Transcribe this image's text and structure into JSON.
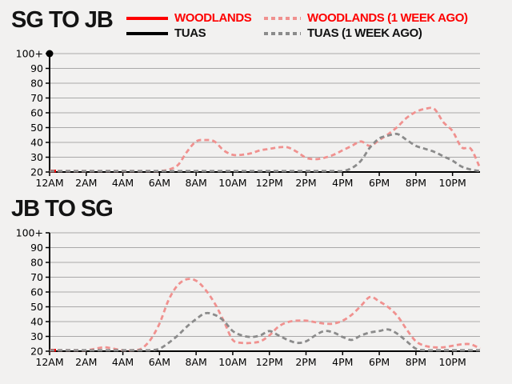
{
  "colors": {
    "background": "#f2f1f0",
    "axis": "#000000",
    "grid": "#a9a9a9",
    "woodlands": "#fe0000",
    "tuas": "#000000",
    "woodlands_week_ago": "#f0918f",
    "tuas_week_ago": "#8b8b8b"
  },
  "legend": {
    "items": [
      {
        "label": "WOODLANDS",
        "swatch_color": "#fe0000",
        "text_color": "#fe0000",
        "line_style": "solid"
      },
      {
        "label": "TUAS",
        "swatch_color": "#000000",
        "text_color": "#111111",
        "line_style": "solid"
      },
      {
        "label": "WOODLANDS (1 WEEK AGO)",
        "swatch_color": "#f0918f",
        "text_color": "#fe0000",
        "line_style": "dashed"
      },
      {
        "label": "TUAS (1 WEEK AGO)",
        "swatch_color": "#8b8b8b",
        "text_color": "#111111",
        "line_style": "dashed"
      }
    ]
  },
  "chart_data": [
    {
      "type": "line",
      "title": "SG TO JB",
      "ylim": [
        20,
        100
      ],
      "x_range_hours": [
        0,
        23.5
      ],
      "x_step_hours": 0.5,
      "grid": "horizontal",
      "y_ticks": [
        {
          "value": 100,
          "label": "100+"
        },
        {
          "value": 90,
          "label": "90"
        },
        {
          "value": 80,
          "label": "80"
        },
        {
          "value": 70,
          "label": "70"
        },
        {
          "value": 60,
          "label": "60"
        },
        {
          "value": 50,
          "label": "50"
        },
        {
          "value": 40,
          "label": "40"
        },
        {
          "value": 30,
          "label": "30"
        },
        {
          "value": 20,
          "label": "20"
        }
      ],
      "x_ticks": [
        {
          "t": 0,
          "label": "12AM"
        },
        {
          "t": 2,
          "label": "2AM"
        },
        {
          "t": 4,
          "label": "4AM"
        },
        {
          "t": 6,
          "label": "6AM"
        },
        {
          "t": 8,
          "label": "8AM"
        },
        {
          "t": 10,
          "label": "10AM"
        },
        {
          "t": 12,
          "label": "12PM"
        },
        {
          "t": 14,
          "label": "2PM"
        },
        {
          "t": 16,
          "label": "4PM"
        },
        {
          "t": 18,
          "label": "6PM"
        },
        {
          "t": 20,
          "label": "8PM"
        },
        {
          "t": 22,
          "label": "10PM"
        }
      ],
      "series": [
        {
          "name": "WOODLANDS",
          "color": "#fe0000",
          "line_style": "solid",
          "x": [
            0,
            0.35
          ],
          "values": [
            20,
            20
          ]
        },
        {
          "name": "TUAS",
          "color": "#000000",
          "line_style": "solid",
          "marker": "dot",
          "x": [
            0
          ],
          "values": [
            100
          ]
        },
        {
          "name": "WOODLANDS (1 WEEK AGO)",
          "color": "#f0918f",
          "line_style": "dashed",
          "values": [
            20,
            20,
            20,
            20,
            20,
            20,
            20,
            20,
            20,
            20,
            20,
            20,
            20,
            21,
            24,
            33,
            40,
            41,
            40,
            34,
            31,
            31,
            32,
            34,
            35,
            36,
            36,
            33,
            29,
            28,
            29,
            31,
            34,
            37,
            40,
            37,
            41,
            45,
            50,
            56,
            60,
            62,
            62,
            53,
            47,
            36,
            35,
            22
          ]
        },
        {
          "name": "TUAS (1 WEEK AGO)",
          "color": "#8b8b8b",
          "line_style": "dashed",
          "values": [
            20,
            20,
            20,
            20,
            20,
            20,
            20,
            20,
            20,
            20,
            20,
            20,
            20,
            20,
            20,
            20,
            20,
            20,
            20,
            20,
            20,
            20,
            20,
            20,
            20,
            20,
            20,
            20,
            20,
            20,
            20,
            20,
            20,
            22,
            27,
            36,
            42,
            44,
            45,
            41,
            37,
            35,
            33,
            30,
            27,
            23,
            21,
            20
          ]
        }
      ]
    },
    {
      "type": "line",
      "title": "JB TO SG",
      "ylim": [
        20,
        100
      ],
      "x_range_hours": [
        0,
        23.5
      ],
      "x_step_hours": 0.5,
      "grid": "horizontal",
      "y_ticks": [
        {
          "value": 100,
          "label": "100+"
        },
        {
          "value": 90,
          "label": "90"
        },
        {
          "value": 80,
          "label": "80"
        },
        {
          "value": 70,
          "label": "70"
        },
        {
          "value": 60,
          "label": "60"
        },
        {
          "value": 50,
          "label": "50"
        },
        {
          "value": 40,
          "label": "40"
        },
        {
          "value": 30,
          "label": "30"
        },
        {
          "value": 20,
          "label": "20"
        }
      ],
      "x_ticks": [
        {
          "t": 0,
          "label": "12AM"
        },
        {
          "t": 2,
          "label": "2AM"
        },
        {
          "t": 4,
          "label": "4AM"
        },
        {
          "t": 6,
          "label": "6AM"
        },
        {
          "t": 8,
          "label": "8AM"
        },
        {
          "t": 10,
          "label": "10AM"
        },
        {
          "t": 12,
          "label": "12PM"
        },
        {
          "t": 14,
          "label": "2PM"
        },
        {
          "t": 16,
          "label": "4PM"
        },
        {
          "t": 18,
          "label": "6PM"
        },
        {
          "t": 20,
          "label": "8PM"
        },
        {
          "t": 22,
          "label": "10PM"
        }
      ],
      "series": [
        {
          "name": "WOODLANDS",
          "color": "#fe0000",
          "line_style": "solid",
          "x": [
            0,
            0.35
          ],
          "values": [
            20,
            20
          ]
        },
        {
          "name": "TUAS",
          "color": "#000000",
          "line_style": "solid",
          "x": [],
          "values": []
        },
        {
          "name": "WOODLANDS (1 WEEK AGO)",
          "color": "#f0918f",
          "line_style": "dashed",
          "values": [
            20,
            20,
            20,
            20,
            20,
            21,
            22,
            21,
            20,
            20,
            21,
            27,
            38,
            54,
            64,
            68,
            67,
            61,
            52,
            40,
            27,
            25,
            25,
            26,
            30,
            36,
            39,
            40,
            40,
            39,
            38,
            38,
            40,
            44,
            50,
            56,
            53,
            49,
            43,
            34,
            26,
            23,
            22,
            22,
            23,
            24,
            24,
            21
          ]
        },
        {
          "name": "TUAS (1 WEEK AGO)",
          "color": "#8b8b8b",
          "line_style": "dashed",
          "values": [
            20,
            20,
            20,
            20,
            20,
            20,
            20,
            20,
            20,
            20,
            20,
            20,
            21,
            25,
            30,
            36,
            41,
            45,
            44,
            40,
            33,
            30,
            29,
            30,
            33,
            30,
            27,
            25,
            26,
            30,
            33,
            32,
            29,
            27,
            30,
            32,
            33,
            34,
            31,
            26,
            21,
            20,
            20,
            20,
            20,
            20,
            20,
            20
          ]
        }
      ]
    }
  ]
}
